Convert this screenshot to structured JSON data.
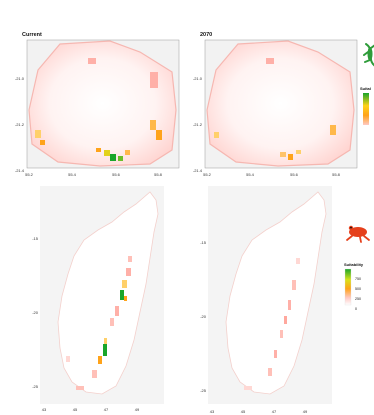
{
  "colors": {
    "low": "#ffffff",
    "mid": "#ffc9c4",
    "high_orange": "#ffa31a",
    "high_green": "#1aa52a",
    "frog": "#e5401c",
    "gecko": "#2f9c3a"
  },
  "icons": {
    "top_right": "green-gecko-icon",
    "bottom_right": "red-frog-icon"
  },
  "chart_data": [
    {
      "type": "heatmap",
      "title": "Current",
      "x_ticks": [
        "55.2",
        "55.4",
        "55.6",
        "55.8"
      ],
      "y_ticks": [
        "-21.0",
        "-21.2",
        "-21.4"
      ],
      "xlim": [
        55.2,
        55.9
      ],
      "ylim": [
        -21.4,
        -20.85
      ],
      "region": "Réunion"
    },
    {
      "type": "heatmap",
      "title": "2070",
      "x_ticks": [
        "55.2",
        "55.4",
        "55.6",
        "55.8"
      ],
      "y_ticks": [
        "-21.0",
        "-21.2",
        "-21.4"
      ],
      "xlim": [
        55.2,
        55.9
      ],
      "ylim": [
        -21.4,
        -20.85
      ],
      "region": "Réunion"
    },
    {
      "type": "heatmap",
      "title": "",
      "x_ticks": [
        "43",
        "45",
        "47",
        "49"
      ],
      "y_ticks": [
        "-15",
        "-20",
        "-25"
      ],
      "xlim": [
        42,
        51
      ],
      "ylim": [
        -26.5,
        -11.5
      ],
      "region": "Madagascar"
    },
    {
      "type": "heatmap",
      "title": "",
      "x_ticks": [
        "43",
        "45",
        "47",
        "49"
      ],
      "y_ticks": [
        "-15",
        "-20",
        "-25"
      ],
      "xlim": [
        42,
        51
      ],
      "ylim": [
        -26.5,
        -11.5
      ],
      "region": "Madagascar"
    }
  ],
  "legend_top": {
    "title": "Suital",
    "values": [
      "",
      "",
      ""
    ]
  },
  "legend_bottom": {
    "title": "Suitability",
    "values": [
      "750",
      "500",
      "250",
      "0"
    ]
  }
}
